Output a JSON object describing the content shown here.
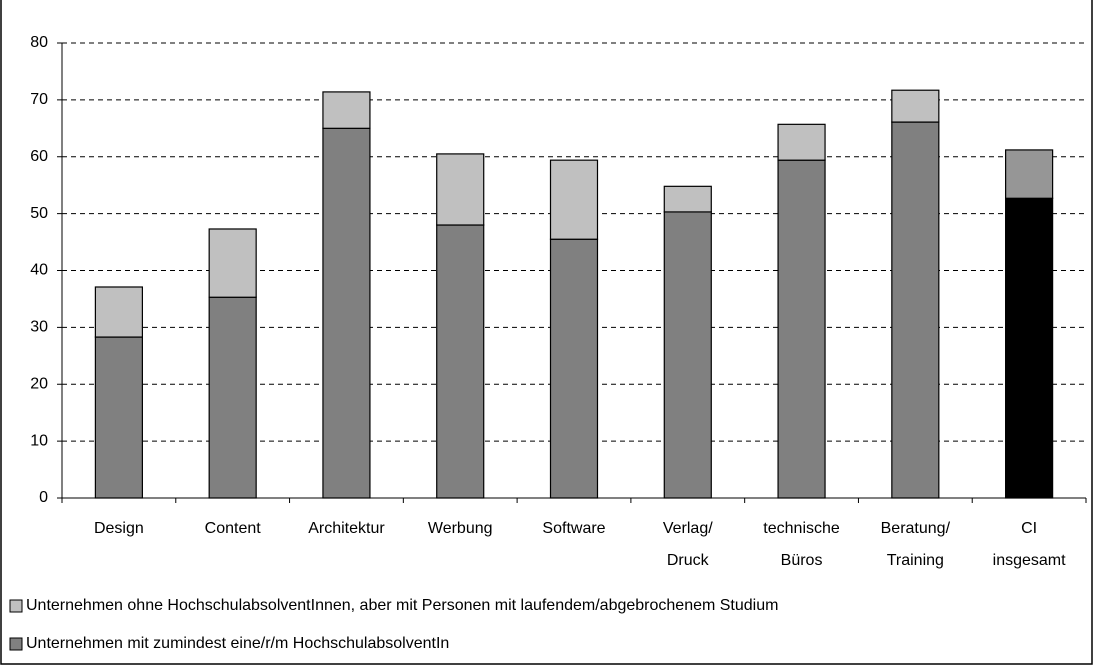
{
  "chart_data": {
    "type": "stacked_bar",
    "categories": [
      "Design",
      "Content",
      "Architektur",
      "Werbung",
      "Software",
      "Verlag/ Druck",
      "technische Büros",
      "Beratung/ Training",
      "CI insgesamt"
    ],
    "series": [
      {
        "name": "Unternehmen mit zumindest eine/r/m HochschulabsolventIn",
        "color": "#808080",
        "colors": [
          "#808080",
          "#808080",
          "#808080",
          "#808080",
          "#808080",
          "#808080",
          "#808080",
          "#808080",
          "#000000"
        ],
        "values": [
          28.3,
          35.3,
          65.0,
          48.0,
          45.5,
          50.3,
          59.4,
          66.1,
          52.7
        ]
      },
      {
        "name": "Unternehmen ohne HochschulabsolventInnen, aber mit Personen mit laufendem/abgebrochenem Studium",
        "color": "#c0c0c0",
        "colors": [
          "#c0c0c0",
          "#c0c0c0",
          "#c0c0c0",
          "#c0c0c0",
          "#c0c0c0",
          "#c0c0c0",
          "#c0c0c0",
          "#c0c0c0",
          "#969696"
        ],
        "values": [
          8.8,
          12.0,
          6.4,
          12.5,
          13.9,
          4.5,
          6.3,
          5.6,
          8.5
        ]
      }
    ],
    "ylim": [
      0,
      80
    ],
    "yticks": [
      0,
      10,
      20,
      30,
      40,
      50,
      60,
      70,
      80
    ],
    "grid": true
  }
}
